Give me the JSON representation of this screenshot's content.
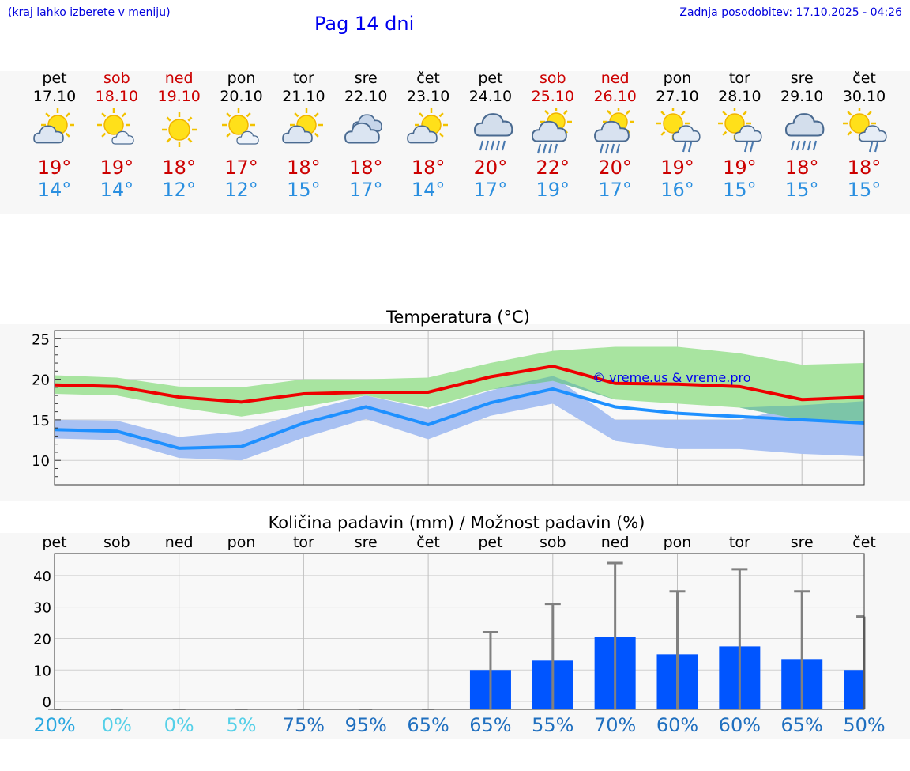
{
  "header": {
    "left_note": "(kraj lahko izberete v meniju)",
    "title": "Pag 14 dni",
    "updated": "Zadnja posodobitev: 17.10.2025 - 04:26"
  },
  "days": [
    {
      "name": "pet",
      "date": "17.10",
      "weekend": false,
      "icon": "partly-cloudy-sun-icon",
      "hi": "19°",
      "lo": "14°"
    },
    {
      "name": "sob",
      "date": "18.10",
      "weekend": true,
      "icon": "sun-small-cloud-icon",
      "hi": "19°",
      "lo": "14°"
    },
    {
      "name": "ned",
      "date": "19.10",
      "weekend": true,
      "icon": "sun-icon",
      "hi": "18°",
      "lo": "12°"
    },
    {
      "name": "pon",
      "date": "20.10",
      "weekend": false,
      "icon": "sun-small-cloud-icon",
      "hi": "17°",
      "lo": "12°"
    },
    {
      "name": "tor",
      "date": "21.10",
      "weekend": false,
      "icon": "partly-cloudy-sun-icon",
      "hi": "18°",
      "lo": "15°"
    },
    {
      "name": "sre",
      "date": "22.10",
      "weekend": false,
      "icon": "cloudy-icon",
      "hi": "18°",
      "lo": "17°"
    },
    {
      "name": "čet",
      "date": "23.10",
      "weekend": false,
      "icon": "partly-cloudy-sun-icon",
      "hi": "18°",
      "lo": "14°"
    },
    {
      "name": "pet",
      "date": "24.10",
      "weekend": false,
      "icon": "rain-cloud-icon",
      "hi": "20°",
      "lo": "17°"
    },
    {
      "name": "sob",
      "date": "25.10",
      "weekend": true,
      "icon": "sun-rain-cloud-icon",
      "hi": "22°",
      "lo": "19°"
    },
    {
      "name": "ned",
      "date": "26.10",
      "weekend": true,
      "icon": "sun-rain-cloud-icon",
      "hi": "20°",
      "lo": "17°"
    },
    {
      "name": "pon",
      "date": "27.10",
      "weekend": false,
      "icon": "sun-light-rain-icon",
      "hi": "19°",
      "lo": "16°"
    },
    {
      "name": "tor",
      "date": "28.10",
      "weekend": false,
      "icon": "sun-light-rain-icon",
      "hi": "19°",
      "lo": "15°"
    },
    {
      "name": "sre",
      "date": "29.10",
      "weekend": false,
      "icon": "rain-cloud-icon",
      "hi": "18°",
      "lo": "15°"
    },
    {
      "name": "čet",
      "date": "30.10",
      "weekend": false,
      "icon": "sun-light-rain-icon",
      "hi": "18°",
      "lo": "15°"
    }
  ],
  "colors": {
    "weekday": "#000000",
    "weekend": "#cc0000",
    "hi": "#cc0000",
    "lo": "#2a8fe0",
    "max_line": "#ee0000",
    "min_line": "#1e90ff",
    "max_band": "#a8e4a0",
    "min_band": "#a9c1f2",
    "overlap_band": "#7cc5a8",
    "bar": "#0055ff",
    "whisker": "#808080"
  },
  "chart_data": [
    {
      "type": "line",
      "title": "Temperatura (°C)",
      "watermark": "© vreme.us & vreme.pro",
      "x_ticks": [
        "pet",
        "sob",
        "ned",
        "pon",
        "tor",
        "sre",
        "čet",
        "pet",
        "sob",
        "ned",
        "pon",
        "tor",
        "sre",
        "čet"
      ],
      "ylim": [
        7,
        26
      ],
      "yticks": [
        10,
        15,
        20,
        25
      ],
      "series": [
        {
          "name": "max",
          "values": [
            19.3,
            19.1,
            17.8,
            17.2,
            18.2,
            18.4,
            18.4,
            20.3,
            21.6,
            19.5,
            19.4,
            19.1,
            17.5,
            17.8
          ],
          "band_low": [
            18.2,
            18.0,
            16.5,
            15.4,
            16.6,
            18.0,
            16.5,
            18.7,
            19.8,
            17.5,
            17.0,
            16.5,
            15.0,
            14.9
          ],
          "band_high": [
            20.5,
            20.2,
            19.1,
            19.0,
            20.0,
            20.0,
            20.2,
            22.0,
            23.5,
            24.0,
            24.0,
            23.2,
            21.8,
            22.0
          ]
        },
        {
          "name": "min",
          "values": [
            13.8,
            13.6,
            11.5,
            11.7,
            14.6,
            16.6,
            14.4,
            17.1,
            18.8,
            16.6,
            15.8,
            15.4,
            15.0,
            14.6
          ],
          "band_low": [
            12.7,
            12.5,
            10.3,
            10.0,
            12.8,
            15.1,
            12.6,
            15.5,
            17.0,
            12.4,
            11.4,
            11.4,
            10.8,
            10.5
          ],
          "band_high": [
            15.0,
            14.9,
            12.9,
            13.6,
            16.0,
            18.0,
            16.3,
            18.6,
            20.4,
            15.0,
            15.0,
            15.0,
            16.8,
            17.3
          ]
        }
      ]
    },
    {
      "type": "bar",
      "title": "Količina padavin (mm) / Možnost padavin (%)",
      "categories": [
        "pet",
        "sob",
        "ned",
        "pon",
        "tor",
        "sre",
        "čet",
        "pet",
        "sob",
        "ned",
        "pon",
        "tor",
        "sre",
        "čet"
      ],
      "values": [
        0,
        0,
        0,
        0,
        0,
        0,
        0,
        10,
        13,
        20.5,
        15,
        17.5,
        13.5,
        10
      ],
      "whisker_max": [
        0,
        0,
        0,
        0,
        0,
        0,
        0,
        22,
        31,
        44,
        35,
        42,
        35,
        27
      ],
      "ylim": [
        -2.5,
        47
      ],
      "yticks": [
        0,
        10,
        20,
        30,
        40
      ],
      "probability": [
        "20%",
        "0%",
        "0%",
        "5%",
        "75%",
        "95%",
        "65%",
        "65%",
        "55%",
        "70%",
        "60%",
        "60%",
        "65%",
        "50%"
      ],
      "prob_colors": [
        "#2aa8e0",
        "#55d0e8",
        "#55d0e8",
        "#55d0e8",
        "#1f6fbf",
        "#1f6fbf",
        "#1f6fbf",
        "#1f6fbf",
        "#1f6fbf",
        "#1f6fbf",
        "#1f6fbf",
        "#1f6fbf",
        "#1f6fbf",
        "#1f6fbf"
      ]
    }
  ]
}
